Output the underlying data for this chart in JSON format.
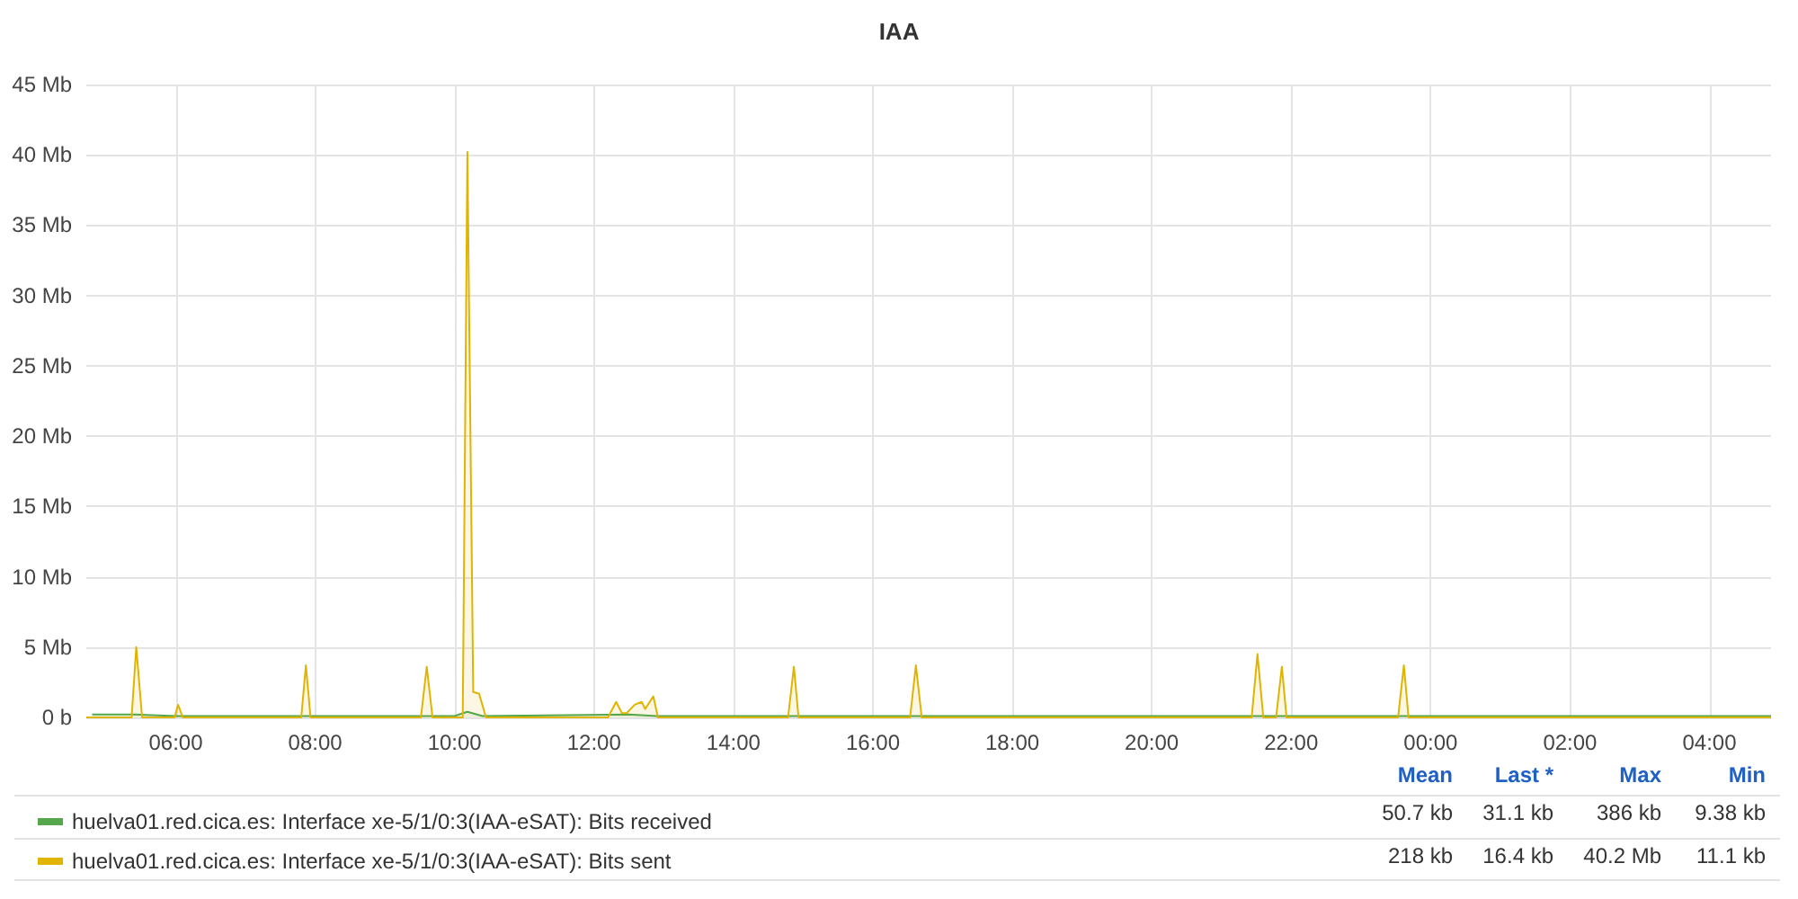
{
  "chart_data": {
    "type": "area",
    "title": "IAA",
    "xlim": [
      "2000-01-01T04:43",
      "2000-01-02T04:53"
    ],
    "xticks": [
      {
        "value": "2000-01-01T06:00",
        "label": "06:00"
      },
      {
        "value": "2000-01-01T08:00",
        "label": "08:00"
      },
      {
        "value": "2000-01-01T10:00",
        "label": "10:00"
      },
      {
        "value": "2000-01-01T12:00",
        "label": "12:00"
      },
      {
        "value": "2000-01-01T14:00",
        "label": "14:00"
      },
      {
        "value": "2000-01-01T16:00",
        "label": "16:00"
      },
      {
        "value": "2000-01-01T18:00",
        "label": "18:00"
      },
      {
        "value": "2000-01-01T20:00",
        "label": "20:00"
      },
      {
        "value": "2000-01-01T22:00",
        "label": "22:00"
      },
      {
        "value": "2000-01-02T00:00",
        "label": "00:00"
      },
      {
        "value": "2000-01-02T02:00",
        "label": "02:00"
      },
      {
        "value": "2000-01-02T04:00",
        "label": "04:00"
      }
    ],
    "ylim": [
      0,
      45
    ],
    "yticks": [
      {
        "value": 0,
        "label": "0 b"
      },
      {
        "value": 5,
        "label": "5 Mb"
      },
      {
        "value": 10,
        "label": "10 Mb"
      },
      {
        "value": 15,
        "label": "15 Mb"
      },
      {
        "value": 20,
        "label": "20 Mb"
      },
      {
        "value": 25,
        "label": "25 Mb"
      },
      {
        "value": 30,
        "label": "30 Mb"
      },
      {
        "value": 35,
        "label": "35 Mb"
      },
      {
        "value": 40,
        "label": "40 Mb"
      },
      {
        "value": 45,
        "label": "45 Mb"
      }
    ],
    "grid": true,
    "legend": "bottom",
    "marker": "none",
    "line_style": "solid",
    "series": [
      {
        "name": "huelva01.red.cica.es: Interface xe-5/1/0:3(IAA-eSAT): Bits received",
        "color": "#56a64b",
        "x": [
          "2000-01-01T04:48",
          "2000-01-01T05:24",
          "2000-01-01T06:00",
          "2000-01-01T07:00",
          "2000-01-01T08:30",
          "2000-01-01T09:36",
          "2000-01-01T10:00",
          "2000-01-01T10:11",
          "2000-01-01T10:24",
          "2000-01-01T12:30",
          "2000-01-01T12:54",
          "2000-01-01T14:00",
          "2000-01-01T16:00",
          "2000-01-01T18:00",
          "2000-01-01T20:00",
          "2000-01-01T22:00",
          "2000-01-02T00:00",
          "2000-01-02T02:00",
          "2000-01-02T04:00",
          "2000-01-02T04:53"
        ],
        "values": [
          0.2,
          0.2,
          0.1,
          0.1,
          0.1,
          0.1,
          0.1,
          0.4,
          0.1,
          0.2,
          0.1,
          0.1,
          0.1,
          0.1,
          0.1,
          0.1,
          0.1,
          0.1,
          0.1,
          0.1
        ]
      },
      {
        "name": "huelva01.red.cica.es: Interface xe-5/1/0:3(IAA-eSAT): Bits sent",
        "color": "#e0b400",
        "x": [
          "2000-01-01T04:43",
          "2000-01-01T05:22",
          "2000-01-01T05:26",
          "2000-01-01T05:31",
          "2000-01-01T05:59",
          "2000-01-01T06:02",
          "2000-01-01T06:06",
          "2000-01-01T07:48",
          "2000-01-01T07:52",
          "2000-01-01T07:56",
          "2000-01-01T09:31",
          "2000-01-01T09:36",
          "2000-01-01T09:41",
          "2000-01-01T10:07",
          "2000-01-01T10:11",
          "2000-01-01T10:16",
          "2000-01-01T10:21",
          "2000-01-01T10:27",
          "2000-01-01T12:12",
          "2000-01-01T12:19",
          "2000-01-01T12:24",
          "2000-01-01T12:28",
          "2000-01-01T12:35",
          "2000-01-01T12:41",
          "2000-01-01T12:44",
          "2000-01-01T12:51",
          "2000-01-01T12:55",
          "2000-01-01T14:47",
          "2000-01-01T14:52",
          "2000-01-01T14:56",
          "2000-01-01T16:32",
          "2000-01-01T16:37",
          "2000-01-01T16:42",
          "2000-01-01T21:26",
          "2000-01-01T21:31",
          "2000-01-01T21:36",
          "2000-01-01T21:47",
          "2000-01-01T21:52",
          "2000-01-01T21:56",
          "2000-01-01T23:32",
          "2000-01-01T23:37",
          "2000-01-01T23:41",
          "2000-01-02T04:53"
        ],
        "values": [
          0,
          0,
          5,
          0,
          0,
          0.9,
          0,
          0,
          3.7,
          0,
          0,
          3.6,
          0,
          0,
          40.2,
          1.8,
          1.7,
          0,
          0,
          1.1,
          0.3,
          0.3,
          0.9,
          1.1,
          0.6,
          1.5,
          0,
          0,
          3.6,
          0,
          0,
          3.7,
          0,
          0,
          4.5,
          0,
          0,
          3.6,
          0,
          0,
          3.7,
          0,
          0
        ]
      }
    ],
    "annotations": [
      "Mean",
      "Last *",
      "Max",
      "Min",
      "50.7 kb",
      "31.1 kb",
      "386 kb",
      "9.38 kb",
      "218 kb",
      "16.4 kb",
      "40.2 Mb",
      "11.1 kb"
    ]
  }
}
